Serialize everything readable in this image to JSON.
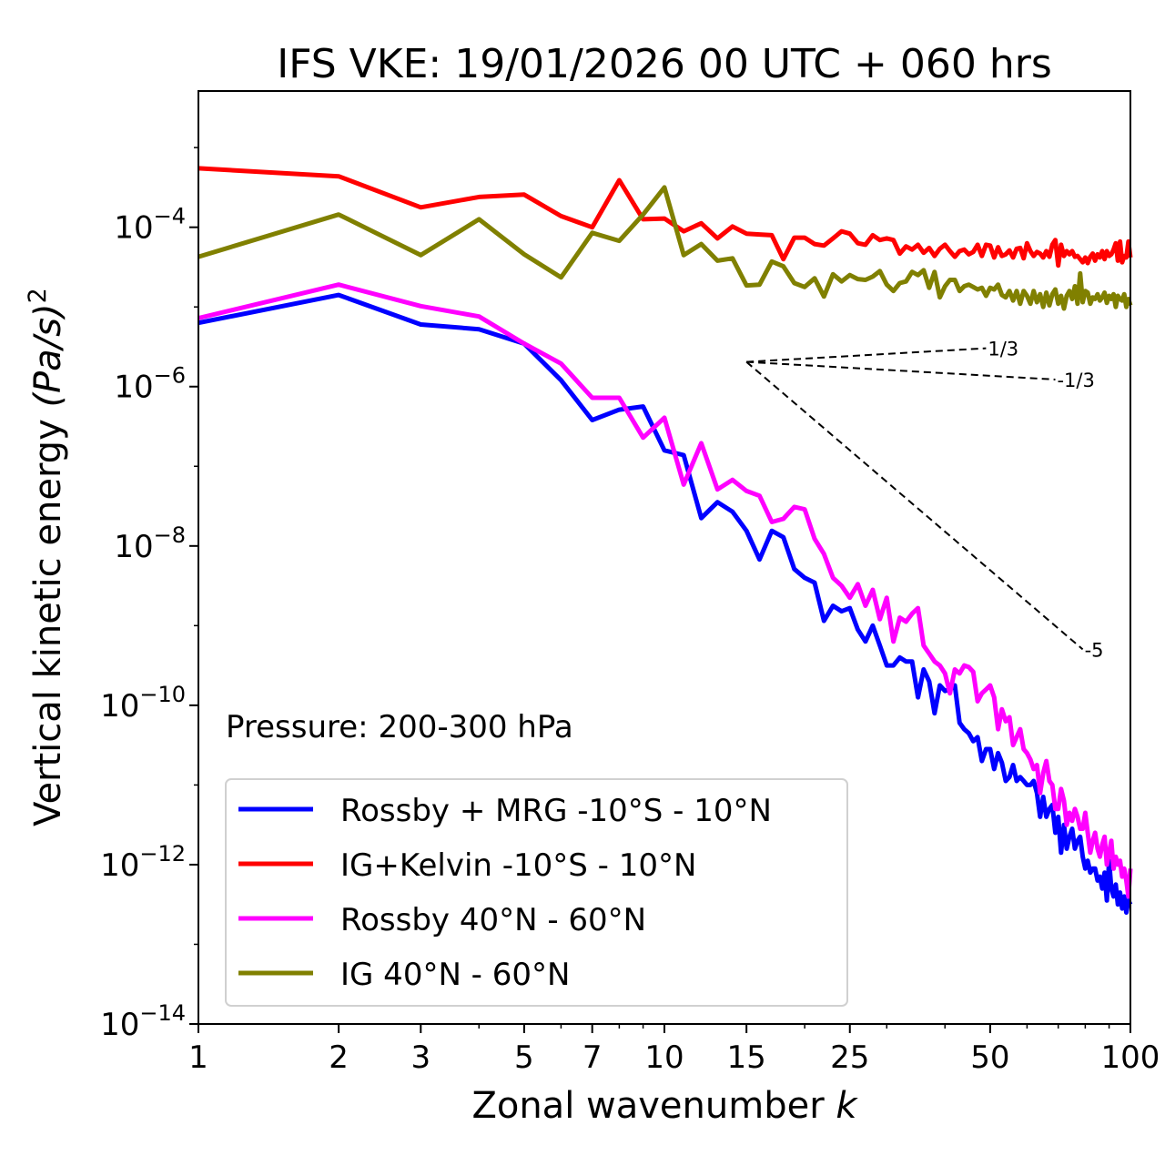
{
  "chart_data": {
    "type": "line",
    "title": "IFS VKE: 19/01/2026 00 UTC + 060 hrs",
    "xlabel": "Zonal wavenumber",
    "xlabel_var": "k",
    "ylabel": "Vertical kinetic energy",
    "ylabel_units": "(Pa/s)",
    "ylabel_power": "2",
    "xscale": "log",
    "yscale": "log",
    "xlim": [
      1,
      100
    ],
    "ylim_log10": [
      -14,
      -2.29
    ],
    "x_ticks": [
      1,
      2,
      3,
      5,
      7,
      10,
      15,
      25,
      50,
      100
    ],
    "y_ticks_log10": [
      -4,
      -6,
      -8,
      -10,
      -12,
      -14
    ],
    "y_tick_base": "10",
    "annotation": "Pressure: 200-300 hPa",
    "legend_placement": "lower-left",
    "x": [
      1,
      2,
      3,
      4,
      5,
      6,
      7,
      8,
      9,
      10,
      11,
      12,
      13,
      14,
      15,
      16,
      17,
      18,
      19,
      20,
      21,
      22,
      23,
      24,
      25,
      26,
      27,
      28,
      29,
      30,
      31,
      32,
      33,
      34,
      35,
      36,
      37,
      38,
      39,
      40,
      41,
      42,
      43,
      44,
      45,
      46,
      47,
      48,
      49,
      50,
      51,
      52,
      53,
      54,
      55,
      56,
      57,
      58,
      59,
      60,
      61,
      62,
      63,
      64,
      65,
      66,
      67,
      68,
      69,
      70,
      71,
      72,
      73,
      74,
      75,
      76,
      77,
      78,
      79,
      80,
      81,
      82,
      83,
      84,
      85,
      86,
      87,
      88,
      89,
      90,
      91,
      92,
      93,
      94,
      95,
      96,
      97,
      98,
      99,
      100
    ],
    "series": [
      {
        "name": "Rossby + MRG -10°S - 10°N",
        "color": "#0000ff",
        "log10_y": [
          -5.2,
          -4.85,
          -5.22,
          -5.28,
          -5.46,
          -5.92,
          -6.42,
          -6.29,
          -6.25,
          -6.8,
          -6.86,
          -7.65,
          -7.45,
          -7.57,
          -7.81,
          -8.17,
          -7.81,
          -7.89,
          -8.29,
          -8.4,
          -8.46,
          -8.94,
          -8.75,
          -8.82,
          -8.78,
          -9.05,
          -9.2,
          -9.0,
          -9.25,
          -9.5,
          -9.5,
          -9.4,
          -9.45,
          -9.45,
          -9.9,
          -9.55,
          -9.7,
          -10.1,
          -9.75,
          -9.82,
          -9.8,
          -9.75,
          -10.22,
          -10.3,
          -10.35,
          -10.45,
          -10.4,
          -10.7,
          -10.55,
          -10.55,
          -10.8,
          -10.6,
          -10.72,
          -10.95,
          -10.9,
          -10.75,
          -10.95,
          -10.9,
          -10.95,
          -11.0,
          -11.0,
          -10.95,
          -11.1,
          -11.4,
          -11.15,
          -11.4,
          -11.3,
          -11.25,
          -11.6,
          -11.4,
          -11.85,
          -11.5,
          -11.8,
          -11.65,
          -11.55,
          -11.8,
          -11.7,
          -11.65,
          -11.9,
          -12.05,
          -11.95,
          -12.1,
          -12.05,
          -12.05,
          -12.2,
          -12.15,
          -12.3,
          -12.1,
          -12.45,
          -11.95,
          -12.3,
          -12.4,
          -12.25,
          -12.5,
          -12.35,
          -12.55,
          -12.4,
          -12.6,
          -12.45,
          -12.5
        ]
      },
      {
        "name": "IG+Kelvin -10°S - 10°N",
        "color": "#ff0000",
        "log10_y": [
          -3.26,
          -3.36,
          -3.75,
          -3.62,
          -3.59,
          -3.86,
          -4.0,
          -3.41,
          -3.9,
          -3.89,
          -4.05,
          -3.95,
          -4.14,
          -3.99,
          -4.08,
          -4.09,
          -4.1,
          -4.4,
          -4.13,
          -4.13,
          -4.21,
          -4.23,
          -4.14,
          -4.05,
          -4.08,
          -4.2,
          -4.22,
          -4.1,
          -4.16,
          -4.14,
          -4.16,
          -4.33,
          -4.24,
          -4.28,
          -4.22,
          -4.32,
          -4.26,
          -4.36,
          -4.27,
          -4.22,
          -4.3,
          -4.37,
          -4.3,
          -4.28,
          -4.34,
          -4.31,
          -4.22,
          -4.36,
          -4.22,
          -4.23,
          -4.38,
          -4.25,
          -4.36,
          -4.34,
          -4.29,
          -4.38,
          -4.27,
          -4.26,
          -4.39,
          -4.2,
          -4.3,
          -4.36,
          -4.31,
          -4.33,
          -4.38,
          -4.3,
          -4.37,
          -4.22,
          -4.16,
          -4.48,
          -4.22,
          -4.36,
          -4.3,
          -4.34,
          -4.3,
          -4.37,
          -4.36,
          -4.4,
          -4.44,
          -4.38,
          -4.45,
          -4.37,
          -4.33,
          -4.42,
          -4.34,
          -4.38,
          -4.3,
          -4.4,
          -4.3,
          -4.36,
          -4.34,
          -4.28,
          -4.2,
          -4.42,
          -4.18,
          -4.44,
          -4.36,
          -4.38,
          -4.18,
          -4.38
        ]
      },
      {
        "name": "Rossby 40°N - 60°N",
        "color": "#ff00ff",
        "log10_y": [
          -5.14,
          -4.72,
          -4.99,
          -5.12,
          -5.46,
          -5.71,
          -6.14,
          -6.14,
          -6.64,
          -6.39,
          -7.23,
          -6.71,
          -7.29,
          -7.17,
          -7.31,
          -7.37,
          -7.7,
          -7.66,
          -7.51,
          -7.54,
          -7.91,
          -8.1,
          -8.4,
          -8.5,
          -8.65,
          -8.48,
          -8.75,
          -8.55,
          -8.92,
          -8.65,
          -9.2,
          -8.9,
          -8.95,
          -8.85,
          -8.78,
          -9.25,
          -9.35,
          -9.45,
          -9.5,
          -9.6,
          -9.85,
          -9.55,
          -9.6,
          -9.5,
          -9.52,
          -9.58,
          -9.95,
          -9.85,
          -9.8,
          -9.75,
          -9.9,
          -10.3,
          -10.05,
          -10.2,
          -10.15,
          -10.5,
          -10.4,
          -10.3,
          -10.55,
          -10.6,
          -10.68,
          -10.8,
          -10.75,
          -11.1,
          -10.85,
          -10.7,
          -10.95,
          -11.0,
          -11.3,
          -11.3,
          -11.05,
          -11.2,
          -11.5,
          -11.35,
          -11.45,
          -11.3,
          -11.4,
          -11.55,
          -11.55,
          -11.35,
          -11.6,
          -11.85,
          -11.7,
          -11.6,
          -11.8,
          -11.9,
          -11.75,
          -11.65,
          -12.0,
          -11.85,
          -11.7,
          -12.05,
          -11.9,
          -12.0,
          -11.95,
          -12.15,
          -12.05,
          -12.2,
          -12.4,
          -12.05
        ]
      },
      {
        "name": "IG 40°N - 60°N",
        "color": "#808000",
        "log10_y": [
          -4.37,
          -3.84,
          -4.35,
          -3.9,
          -4.34,
          -4.63,
          -4.07,
          -4.17,
          -3.84,
          -3.5,
          -4.35,
          -4.21,
          -4.42,
          -4.39,
          -4.73,
          -4.72,
          -4.43,
          -4.49,
          -4.7,
          -4.75,
          -4.64,
          -4.87,
          -4.59,
          -4.68,
          -4.6,
          -4.65,
          -4.66,
          -4.62,
          -4.55,
          -4.72,
          -4.8,
          -4.7,
          -4.68,
          -4.56,
          -4.6,
          -4.54,
          -4.76,
          -4.56,
          -4.88,
          -4.74,
          -4.66,
          -4.66,
          -4.8,
          -4.74,
          -4.72,
          -4.75,
          -4.78,
          -4.76,
          -4.86,
          -4.76,
          -4.78,
          -4.72,
          -4.85,
          -4.88,
          -4.8,
          -4.92,
          -4.8,
          -4.96,
          -4.8,
          -4.86,
          -4.96,
          -4.8,
          -4.94,
          -4.84,
          -5.0,
          -4.82,
          -4.98,
          -4.84,
          -4.78,
          -4.96,
          -4.86,
          -5.02,
          -4.86,
          -4.8,
          -4.9,
          -4.74,
          -4.96,
          -4.58,
          -4.94,
          -4.8,
          -4.82,
          -4.96,
          -4.88,
          -4.9,
          -4.84,
          -4.92,
          -4.88,
          -4.82,
          -4.95,
          -4.86,
          -4.9,
          -4.84,
          -5.0,
          -4.86,
          -4.9,
          -4.92,
          -4.84,
          -5.0,
          -4.9,
          -4.98
        ]
      }
    ],
    "reference_slopes": [
      {
        "label": "1/3",
        "slope": 0.3333,
        "k_start": 15,
        "k_end": 49,
        "log10_y_start": -5.69
      },
      {
        "label": "-1/3",
        "slope": -0.3333,
        "k_start": 15,
        "k_end": 69,
        "log10_y_start": -5.69
      },
      {
        "label": "-5",
        "slope": -5,
        "k_start": 15,
        "k_end": 79,
        "log10_y_start": -5.69
      }
    ]
  }
}
